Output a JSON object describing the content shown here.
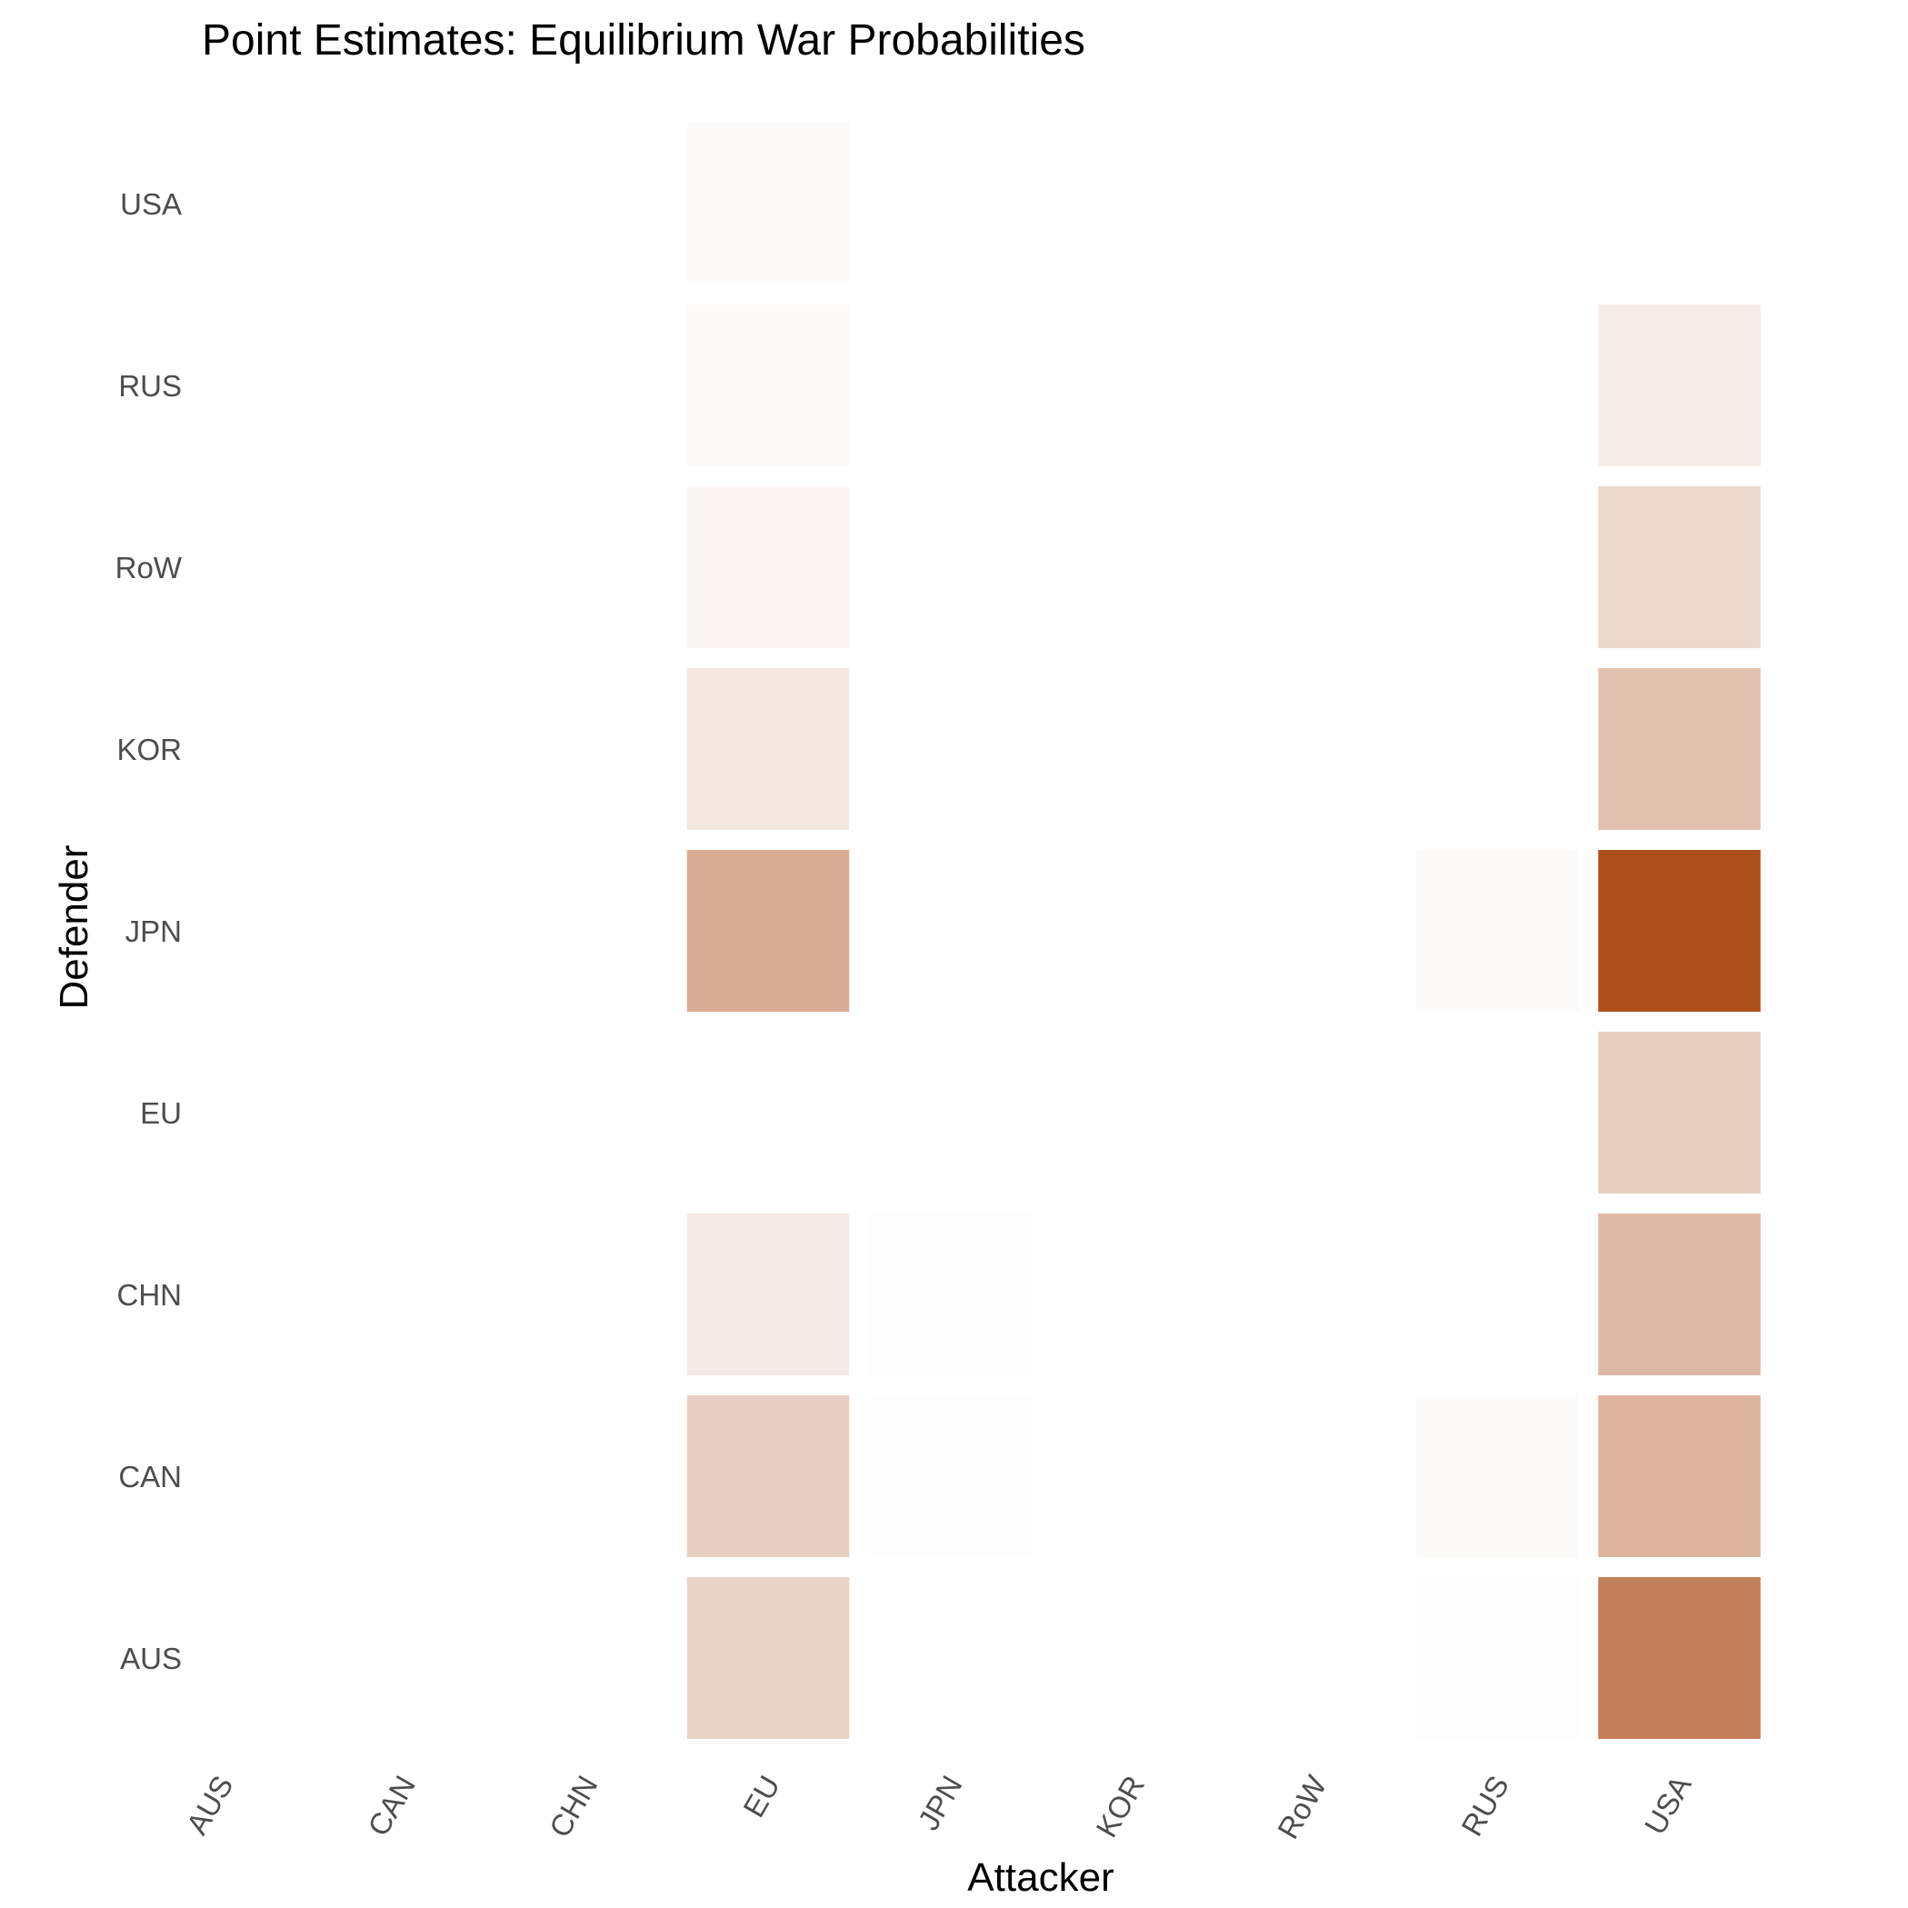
{
  "chart_data": {
    "type": "heatmap",
    "title": "Point Estimates: Equilibrium War Probabilities",
    "xlabel": "Attacker",
    "ylabel": "Defender",
    "x_categories": [
      "AUS",
      "CAN",
      "CHN",
      "EU",
      "JPN",
      "KOR",
      "RoW",
      "RUS",
      "USA"
    ],
    "y_categories": [
      "AUS",
      "CAN",
      "CHN",
      "EU",
      "JPN",
      "KOR",
      "RoW",
      "RUS",
      "USA"
    ],
    "color_low": "#ffffff",
    "color_high": "#ad4f1b",
    "legend": "none",
    "grid": false,
    "values": [
      [
        0,
        0,
        0,
        0.24,
        0,
        0,
        0,
        0.01,
        0.73
      ],
      [
        0,
        0,
        0,
        0.27,
        0.01,
        0.005,
        0,
        0.02,
        0.42
      ],
      [
        0,
        0,
        0,
        0.12,
        0.01,
        0,
        0,
        0.005,
        0.4
      ],
      [
        0,
        0,
        0,
        0,
        0,
        0,
        0,
        0.005,
        0.28
      ],
      [
        0,
        0,
        0,
        0.47,
        0,
        0,
        0,
        0.02,
        1.0
      ],
      [
        0,
        0,
        0,
        0.13,
        0,
        0,
        0,
        0.005,
        0.35
      ],
      [
        0,
        0,
        0,
        0.05,
        0,
        0,
        0,
        0.005,
        0.22
      ],
      [
        0,
        0,
        0,
        0.02,
        0,
        0,
        0,
        0,
        0.1
      ],
      [
        0,
        0,
        0,
        0.02,
        0,
        0,
        0,
        0,
        0
      ]
    ]
  }
}
